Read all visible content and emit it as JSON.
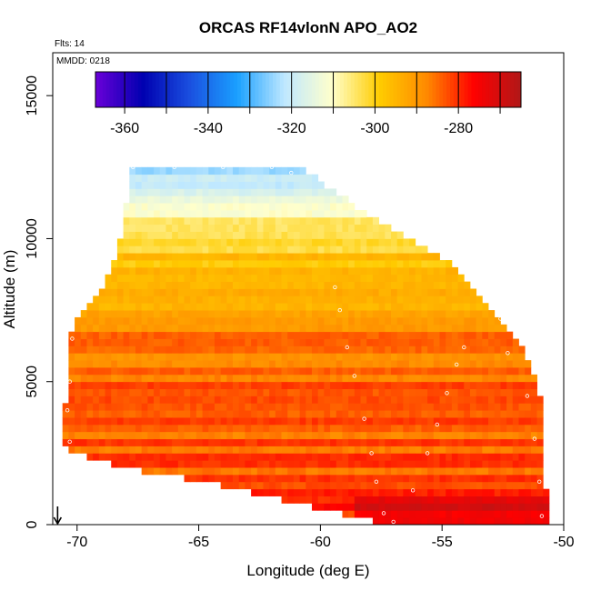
{
  "chart_data": {
    "type": "heatmap",
    "title": "ORCAS RF14vlonN APO_AO2",
    "subtitle_flights": "Flts: 14",
    "subtitle_mmdd": "MMDD: 0218",
    "xlabel": "Longitude (deg E)",
    "ylabel": "Altitude (m)",
    "xlim": [
      -71,
      -50
    ],
    "ylim": [
      0,
      16500
    ],
    "x_ticks": [
      -70,
      -65,
      -60,
      -55,
      -50
    ],
    "x_tick_labels": [
      "-70",
      "-65",
      "-60",
      "-55",
      "-50"
    ],
    "y_ticks": [
      0,
      5000,
      10000,
      15000
    ],
    "y_tick_labels": [
      "0",
      "5000",
      "10000",
      "15000"
    ],
    "colorbar": {
      "range": [
        -367,
        -265
      ],
      "ticks": [
        -360,
        -340,
        -320,
        -300,
        -280
      ],
      "tick_labels": [
        "-360",
        "-340",
        "-320",
        "-300",
        "-280"
      ],
      "colors": [
        "#6a00d8",
        "#0000b0",
        "#1a50e0",
        "#1aa0ff",
        "#bfe8ff",
        "#ffffcc",
        "#ffcc00",
        "#ff8a00",
        "#ff0000",
        "#b01818"
      ]
    },
    "domain_outline": [
      {
        "lon": -70.6,
        "alt_top": 2800
      },
      {
        "lon": -70.2,
        "alt_top": 6800
      },
      {
        "lon": -69.0,
        "alt_top": 8000
      },
      {
        "lon": -68.3,
        "alt_top": 9500
      },
      {
        "lon": -67.7,
        "alt_top": 12500
      },
      {
        "lon": -61.0,
        "alt_top": 12500
      },
      {
        "lon": -58.5,
        "alt_top": 11000
      },
      {
        "lon": -56.5,
        "alt_top": 10000
      },
      {
        "lon": -54.5,
        "alt_top": 9000
      },
      {
        "lon": -52.5,
        "alt_top": 7000
      },
      {
        "lon": -51.5,
        "alt_top": 5800
      },
      {
        "lon": -51.0,
        "alt_top": 4800
      },
      {
        "lon": -50.8,
        "alt_top": 1200
      }
    ],
    "domain_bottom": [
      {
        "lon": -70.6,
        "alt_bottom": 2800
      },
      {
        "lon": -68.5,
        "alt_bottom": 2200
      },
      {
        "lon": -66.0,
        "alt_bottom": 1800
      },
      {
        "lon": -63.0,
        "alt_bottom": 1300
      },
      {
        "lon": -60.0,
        "alt_bottom": 700
      },
      {
        "lon": -58.0,
        "alt_bottom": 300
      },
      {
        "lon": -57.5,
        "alt_bottom": 0
      },
      {
        "lon": -50.8,
        "alt_bottom": 0
      }
    ],
    "value_profile": [
      {
        "alt": 0,
        "value": -278
      },
      {
        "alt": 1500,
        "value": -282
      },
      {
        "alt": 3000,
        "value": -284
      },
      {
        "alt": 4500,
        "value": -285
      },
      {
        "alt": 6500,
        "value": -286
      },
      {
        "alt": 8000,
        "value": -293
      },
      {
        "alt": 9500,
        "value": -299
      },
      {
        "alt": 10500,
        "value": -305
      },
      {
        "alt": 11500,
        "value": -312
      },
      {
        "alt": 12500,
        "value": -325
      }
    ],
    "flight_track": [
      {
        "lon": -70.3,
        "alt": 2900
      },
      {
        "lon": -70.4,
        "alt": 4000
      },
      {
        "lon": -70.3,
        "alt": 5000
      },
      {
        "lon": -70.2,
        "alt": 6500
      },
      {
        "lon": -67.7,
        "alt": 12500
      },
      {
        "lon": -66.0,
        "alt": 12500
      },
      {
        "lon": -64.0,
        "alt": 12500
      },
      {
        "lon": -62.0,
        "alt": 12500
      },
      {
        "lon": -61.2,
        "alt": 12300
      },
      {
        "lon": -59.4,
        "alt": 8300
      },
      {
        "lon": -59.2,
        "alt": 7500
      },
      {
        "lon": -58.9,
        "alt": 6200
      },
      {
        "lon": -58.6,
        "alt": 5200
      },
      {
        "lon": -58.2,
        "alt": 3700
      },
      {
        "lon": -57.9,
        "alt": 2500
      },
      {
        "lon": -57.7,
        "alt": 1500
      },
      {
        "lon": -57.4,
        "alt": 400
      },
      {
        "lon": -57.0,
        "alt": 100
      },
      {
        "lon": -56.2,
        "alt": 1200
      },
      {
        "lon": -55.6,
        "alt": 2500
      },
      {
        "lon": -55.2,
        "alt": 3500
      },
      {
        "lon": -54.8,
        "alt": 4600
      },
      {
        "lon": -54.4,
        "alt": 5600
      },
      {
        "lon": -54.1,
        "alt": 6200
      },
      {
        "lon": -52.6,
        "alt": 7200
      },
      {
        "lon": -52.3,
        "alt": 6000
      },
      {
        "lon": -51.5,
        "alt": 4500
      },
      {
        "lon": -51.2,
        "alt": 3000
      },
      {
        "lon": -51.0,
        "alt": 1500
      },
      {
        "lon": -50.9,
        "alt": 300
      }
    ],
    "arrow_marker_lon": -70.8
  }
}
